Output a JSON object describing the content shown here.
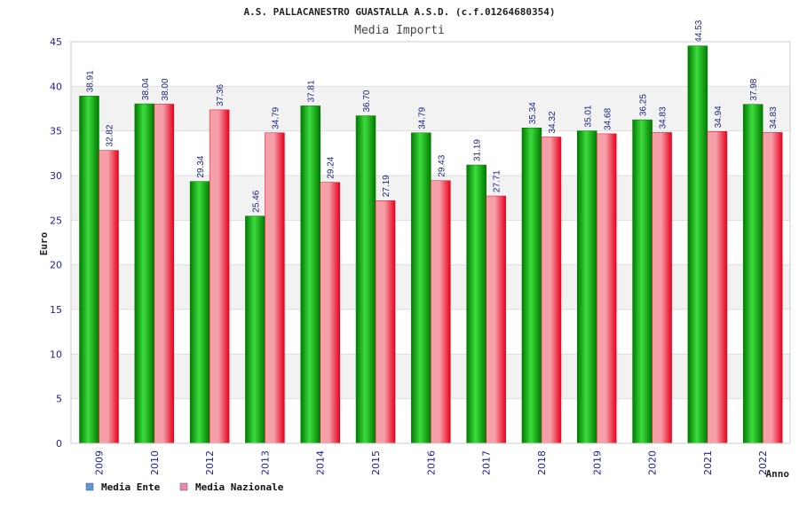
{
  "chart_data": {
    "type": "bar",
    "title": "A.S. PALLACANESTRO GUASTALLA A.S.D. (c.f.01264680354)",
    "subtitle": "Media Importi",
    "xlabel": "Anno",
    "ylabel": "Euro",
    "ylim": [
      0,
      45
    ],
    "yticks": [
      0,
      5,
      10,
      15,
      20,
      25,
      30,
      35,
      40,
      45
    ],
    "categories": [
      "2009",
      "2010",
      "2012",
      "2013",
      "2014",
      "2015",
      "2016",
      "2017",
      "2018",
      "2019",
      "2020",
      "2021",
      "2022"
    ],
    "series": [
      {
        "name": "Media Ente",
        "values": [
          38.91,
          38.04,
          29.34,
          25.46,
          37.81,
          36.7,
          34.79,
          31.19,
          35.34,
          35.01,
          36.25,
          44.53,
          37.98
        ],
        "labels": [
          "38.91",
          "38.04",
          "29.34",
          "25.46",
          "37.81",
          "36.70",
          "34.79",
          "31.19",
          "35.34",
          "35.01",
          "36.25",
          "44.53",
          "37.98"
        ]
      },
      {
        "name": "Media Nazionale",
        "values": [
          32.82,
          38.0,
          37.36,
          34.79,
          29.24,
          27.19,
          29.43,
          27.71,
          34.32,
          34.68,
          34.83,
          34.94,
          34.83
        ],
        "labels": [
          "32.82",
          "38.00",
          "37.36",
          "34.79",
          "29.24",
          "27.19",
          "29.43",
          "27.71",
          "34.32",
          "34.68",
          "34.83",
          "34.94",
          "34.83"
        ]
      }
    ],
    "legend": [
      {
        "name": "Media Ente",
        "swatch_color": "#5b9bd5"
      },
      {
        "name": "Media Nazionale",
        "swatch_color": "#e889b4"
      }
    ],
    "colors": {
      "ente_dark": "#007a00",
      "ente_light": "#3ddc3d",
      "naz_dark": "#e8001c",
      "naz_light": "#f5a0a8",
      "band": "#f2f2f2",
      "grid": "#dddddd",
      "axis": "#aaaaaa"
    },
    "grid": true,
    "legend_position": "bottom-left"
  }
}
